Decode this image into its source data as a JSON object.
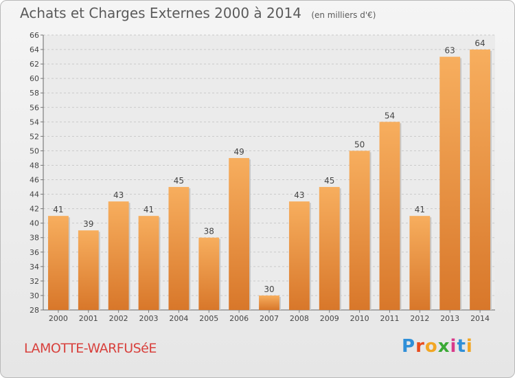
{
  "chart_data": {
    "type": "bar",
    "title": "Achats et Charges Externes 2000 à 2014",
    "unit_label": "(en milliers d'€)",
    "categories": [
      "2000",
      "2001",
      "2002",
      "2003",
      "2004",
      "2005",
      "2006",
      "2007",
      "2008",
      "2009",
      "2010",
      "2011",
      "2012",
      "2013",
      "2014"
    ],
    "values": [
      41,
      39,
      43,
      41,
      45,
      38,
      49,
      30,
      43,
      45,
      50,
      54,
      41,
      63,
      64
    ],
    "ylim": [
      28,
      66
    ],
    "yticks": [
      28,
      30,
      32,
      34,
      36,
      38,
      40,
      42,
      44,
      46,
      48,
      50,
      52,
      54,
      56,
      58,
      60,
      62,
      64,
      66
    ],
    "xlabel": "",
    "ylabel": "",
    "grid": true,
    "bar_color": "#f0a04a",
    "bar_color_light": "#f7ae5e",
    "bar_color_dark": "#d8772a"
  },
  "commune_name": "LAMOTTE-WARFUSéE",
  "logo": {
    "letters": [
      "P",
      "r",
      "o",
      "x",
      "i",
      "t",
      "i"
    ]
  }
}
